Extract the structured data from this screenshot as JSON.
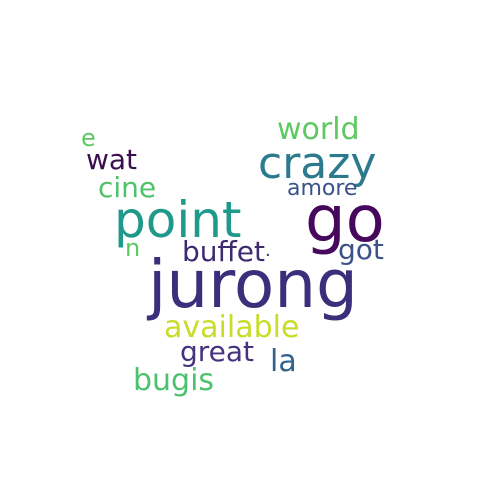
{
  "words": {
    "jurong": {
      "text": "jurong",
      "color": "#3b2f7b"
    },
    "point": {
      "text": "point",
      "color": "#1f9a8a"
    },
    "go": {
      "text": "go",
      "color": "#46085c"
    },
    "crazy": {
      "text": "crazy",
      "color": "#2c7a8e"
    },
    "world": {
      "text": "world",
      "color": "#5ec962"
    },
    "amore": {
      "text": "amore",
      "color": "#3b528b"
    },
    "buffet": {
      "text": "buffet",
      "color": "#3e2a70"
    },
    "got": {
      "text": "got",
      "color": "#3b528b"
    },
    "n": {
      "text": "n",
      "color": "#5ec962"
    },
    "dot": {
      "text": ".",
      "color": "#3b2f7b"
    },
    "cine": {
      "text": "cine",
      "color": "#4fc36a"
    },
    "wat": {
      "text": "wat",
      "color": "#3b0f4f"
    },
    "e": {
      "text": "e",
      "color": "#5ec962"
    },
    "available": {
      "text": "available",
      "color": "#c8dc2a"
    },
    "great": {
      "text": "great",
      "color": "#46337e"
    },
    "la": {
      "text": "la",
      "color": "#33638d"
    },
    "bugis": {
      "text": "bugis",
      "color": "#4cc26c"
    }
  }
}
